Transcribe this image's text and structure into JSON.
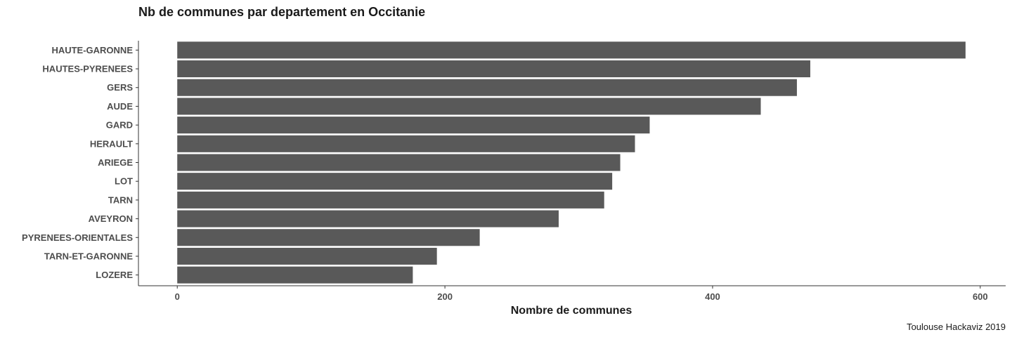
{
  "chart_data": {
    "type": "bar",
    "orientation": "horizontal",
    "title": "Nb de communes par departement en Occitanie",
    "xlabel": "Nombre de communes",
    "ylabel": "",
    "caption": "Toulouse Hackaviz 2019",
    "categories": [
      "HAUTE-GARONNE",
      "HAUTES-PYRENEES",
      "GERS",
      "AUDE",
      "GARD",
      "HERAULT",
      "ARIEGE",
      "LOT",
      "TARN",
      "AVEYRON",
      "PYRENEES-ORIENTALES",
      "TARN-ET-GARONNE",
      "LOZERE"
    ],
    "values": [
      589,
      473,
      463,
      436,
      353,
      342,
      331,
      325,
      319,
      285,
      226,
      194,
      176
    ],
    "xlim": [
      -29,
      619
    ],
    "xticks": [
      0,
      200,
      400,
      600
    ],
    "grid": false,
    "bar_color": "#595959",
    "axis_color": "#333333",
    "label_color": "#4d4d4d",
    "title_color": "#1a1a1a"
  }
}
